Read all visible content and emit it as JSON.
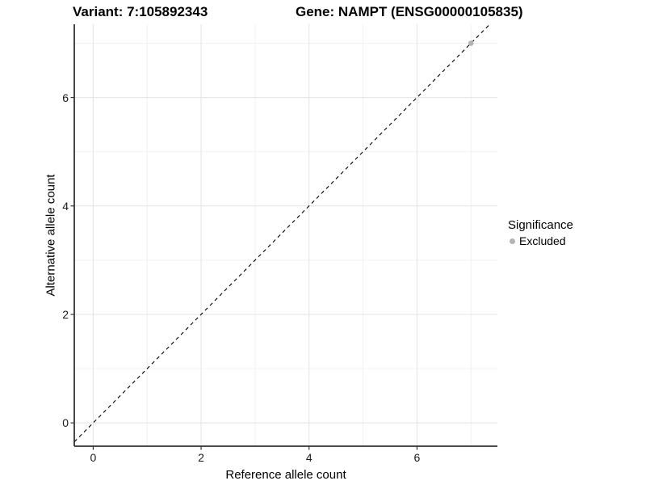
{
  "titles": {
    "variant": "Variant: 7:105892343",
    "gene": "Gene: NAMPT (ENSG00000105835)"
  },
  "legend": {
    "title": "Significance",
    "items": [
      {
        "label": "Excluded",
        "color": "#b3b3b3"
      }
    ]
  },
  "colors": {
    "background": "#ffffff",
    "grid_major": "#e3e3e3",
    "grid_minor": "#f1f1f1",
    "axis": "#333333",
    "reference_line": "#000000",
    "excluded_point": "#b3b3b3"
  },
  "chart_data": {
    "type": "scatter",
    "title_left": "Variant: 7:105892343",
    "title_right": "Gene: NAMPT (ENSG00000105835)",
    "xlabel": "Reference allele count",
    "ylabel": "Alternative allele count",
    "xlim": [
      -0.35,
      7.49
    ],
    "ylim": [
      -0.43,
      7.35
    ],
    "x_major_ticks": [
      0,
      2,
      4,
      6
    ],
    "x_minor_gridlines": [
      1,
      3,
      5,
      7
    ],
    "y_major_ticks": [
      0,
      2,
      4,
      6
    ],
    "y_minor_gridlines": [
      1,
      3,
      5,
      7
    ],
    "grid": true,
    "legend_position": "right",
    "reference_line": {
      "equation": "y = x",
      "style": "dashed",
      "color": "#000000"
    },
    "series": [
      {
        "name": "Excluded",
        "color": "#b3b3b3",
        "points": [
          {
            "x": 7,
            "y": 7
          }
        ]
      }
    ]
  }
}
